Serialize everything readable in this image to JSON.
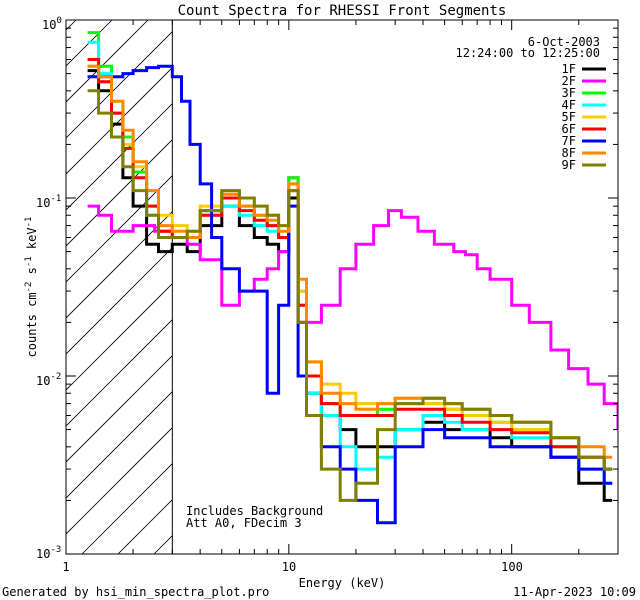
{
  "chart_data": {
    "type": "line",
    "title": "Count Spectra for RHESSI Front Segments",
    "xlabel": "Energy (keV)",
    "ylabel_parts": {
      "main": "counts cm",
      "exp1": "-2",
      "mid1": " s",
      "exp2": "-1",
      "mid2": " keV",
      "exp3": "-1"
    },
    "x_scale": "log",
    "y_scale": "log",
    "xlim": [
      1,
      300
    ],
    "ylim": [
      0.001,
      1
    ],
    "x_ticks": [
      {
        "value": 1,
        "label": "1"
      },
      {
        "value": 10,
        "label": "10"
      },
      {
        "value": 100,
        "label": "100"
      }
    ],
    "y_ticks": [
      {
        "value": 1,
        "base": "10",
        "exp": "0"
      },
      {
        "value": 0.1,
        "base": "10",
        "exp": "-1"
      },
      {
        "value": 0.01,
        "base": "10",
        "exp": "-2"
      },
      {
        "value": 0.001,
        "base": "10",
        "exp": "-3"
      }
    ],
    "date": "6-Oct-2003",
    "time_range": "12:24:00 to 12:25:00",
    "annotations": [
      "Includes Background",
      "Att A0, FDecim 3"
    ],
    "hatched_region_xmax": 3,
    "legend_position": "top-right",
    "series": [
      {
        "name": "1F",
        "color": "#000000",
        "points": [
          [
            1.25,
            0.52
          ],
          [
            1.4,
            0.4
          ],
          [
            1.6,
            0.26
          ],
          [
            1.8,
            0.13
          ],
          [
            2.0,
            0.09
          ],
          [
            2.3,
            0.055
          ],
          [
            2.6,
            0.05
          ],
          [
            3.0,
            0.055
          ],
          [
            3.5,
            0.05
          ],
          [
            4.0,
            0.07
          ],
          [
            5.0,
            0.09
          ],
          [
            6.0,
            0.07
          ],
          [
            7.0,
            0.06
          ],
          [
            8.0,
            0.055
          ],
          [
            9.0,
            0.05
          ],
          [
            10.0,
            0.1
          ],
          [
            11.0,
            0.02
          ],
          [
            12.0,
            0.008
          ],
          [
            14.0,
            0.006
          ],
          [
            17.0,
            0.005
          ],
          [
            20.0,
            0.004
          ],
          [
            25.0,
            0.004
          ],
          [
            30.0,
            0.005
          ],
          [
            40.0,
            0.0055
          ],
          [
            50.0,
            0.005
          ],
          [
            60.0,
            0.005
          ],
          [
            80.0,
            0.0045
          ],
          [
            100.0,
            0.004
          ],
          [
            150.0,
            0.0035
          ],
          [
            200.0,
            0.0025
          ],
          [
            260.0,
            0.002
          ]
        ]
      },
      {
        "name": "2F",
        "color": "#ff00ff",
        "points": [
          [
            1.25,
            0.09
          ],
          [
            1.4,
            0.08
          ],
          [
            1.6,
            0.065
          ],
          [
            1.8,
            0.065
          ],
          [
            2.0,
            0.07
          ],
          [
            2.5,
            0.065
          ],
          [
            3.0,
            0.06
          ],
          [
            3.5,
            0.055
          ],
          [
            4.0,
            0.045
          ],
          [
            5.0,
            0.025
          ],
          [
            6.0,
            0.03
          ],
          [
            7.0,
            0.035
          ],
          [
            8.0,
            0.04
          ],
          [
            9.0,
            0.05
          ],
          [
            10.0,
            0.13
          ],
          [
            11.0,
            0.03
          ],
          [
            12.0,
            0.02
          ],
          [
            14.0,
            0.025
          ],
          [
            17.0,
            0.04
          ],
          [
            20.0,
            0.055
          ],
          [
            24.0,
            0.07
          ],
          [
            28.0,
            0.085
          ],
          [
            32.0,
            0.078
          ],
          [
            38.0,
            0.065
          ],
          [
            45.0,
            0.055
          ],
          [
            55.0,
            0.05
          ],
          [
            62.0,
            0.048
          ],
          [
            70.0,
            0.04
          ],
          [
            80.0,
            0.035
          ],
          [
            100.0,
            0.025
          ],
          [
            120.0,
            0.02
          ],
          [
            150.0,
            0.014
          ],
          [
            180.0,
            0.011
          ],
          [
            220.0,
            0.009
          ],
          [
            260.0,
            0.007
          ],
          [
            300.0,
            0.005
          ]
        ]
      },
      {
        "name": "3F",
        "color": "#00ff00",
        "points": [
          [
            1.25,
            0.85
          ],
          [
            1.4,
            0.55
          ],
          [
            1.6,
            0.35
          ],
          [
            1.8,
            0.22
          ],
          [
            2.0,
            0.14
          ],
          [
            2.3,
            0.09
          ],
          [
            2.6,
            0.06
          ],
          [
            3.0,
            0.06
          ],
          [
            3.5,
            0.06
          ],
          [
            4.0,
            0.085
          ],
          [
            5.0,
            0.1
          ],
          [
            6.0,
            0.09
          ],
          [
            7.0,
            0.08
          ],
          [
            8.0,
            0.07
          ],
          [
            9.0,
            0.06
          ],
          [
            10.0,
            0.13
          ],
          [
            11.0,
            0.03
          ],
          [
            12.0,
            0.01
          ],
          [
            14.0,
            0.007
          ],
          [
            17.0,
            0.006
          ],
          [
            20.0,
            0.006
          ],
          [
            25.0,
            0.0065
          ],
          [
            30.0,
            0.007
          ],
          [
            40.0,
            0.007
          ],
          [
            50.0,
            0.0065
          ],
          [
            60.0,
            0.006
          ],
          [
            80.0,
            0.0055
          ],
          [
            100.0,
            0.005
          ],
          [
            150.0,
            0.004
          ],
          [
            200.0,
            0.0035
          ],
          [
            260.0,
            0.003
          ]
        ]
      },
      {
        "name": "4F",
        "color": "#00ffff",
        "points": [
          [
            1.25,
            0.75
          ],
          [
            1.4,
            0.5
          ],
          [
            1.6,
            0.3
          ],
          [
            1.8,
            0.19
          ],
          [
            2.0,
            0.13
          ],
          [
            2.3,
            0.08
          ],
          [
            2.6,
            0.06
          ],
          [
            3.0,
            0.06
          ],
          [
            3.5,
            0.06
          ],
          [
            4.0,
            0.08
          ],
          [
            5.0,
            0.09
          ],
          [
            6.0,
            0.08
          ],
          [
            7.0,
            0.07
          ],
          [
            8.0,
            0.065
          ],
          [
            9.0,
            0.06
          ],
          [
            10.0,
            0.12
          ],
          [
            11.0,
            0.025
          ],
          [
            12.0,
            0.008
          ],
          [
            14.0,
            0.006
          ],
          [
            17.0,
            0.004
          ],
          [
            20.0,
            0.003
          ],
          [
            25.0,
            0.0035
          ],
          [
            30.0,
            0.005
          ],
          [
            40.0,
            0.006
          ],
          [
            50.0,
            0.0055
          ],
          [
            60.0,
            0.005
          ],
          [
            80.0,
            0.005
          ],
          [
            100.0,
            0.0045
          ],
          [
            150.0,
            0.004
          ],
          [
            200.0,
            0.003
          ],
          [
            260.0,
            0.0025
          ]
        ]
      },
      {
        "name": "5F",
        "color": "#ffcc00",
        "points": [
          [
            1.25,
            0.55
          ],
          [
            1.4,
            0.45
          ],
          [
            1.6,
            0.3
          ],
          [
            1.8,
            0.2
          ],
          [
            2.0,
            0.15
          ],
          [
            2.3,
            0.11
          ],
          [
            2.6,
            0.08
          ],
          [
            3.0,
            0.07
          ],
          [
            3.5,
            0.065
          ],
          [
            4.0,
            0.09
          ],
          [
            5.0,
            0.11
          ],
          [
            6.0,
            0.1
          ],
          [
            7.0,
            0.09
          ],
          [
            8.0,
            0.08
          ],
          [
            9.0,
            0.07
          ],
          [
            10.0,
            0.12
          ],
          [
            11.0,
            0.03
          ],
          [
            12.0,
            0.012
          ],
          [
            14.0,
            0.009
          ],
          [
            17.0,
            0.008
          ],
          [
            20.0,
            0.007
          ],
          [
            25.0,
            0.007
          ],
          [
            30.0,
            0.0075
          ],
          [
            40.0,
            0.007
          ],
          [
            50.0,
            0.0065
          ],
          [
            60.0,
            0.006
          ],
          [
            80.0,
            0.0055
          ],
          [
            100.0,
            0.005
          ],
          [
            150.0,
            0.0045
          ],
          [
            200.0,
            0.0035
          ],
          [
            260.0,
            0.003
          ]
        ]
      },
      {
        "name": "6F",
        "color": "#ff0000",
        "points": [
          [
            1.25,
            0.6
          ],
          [
            1.4,
            0.45
          ],
          [
            1.6,
            0.3
          ],
          [
            1.8,
            0.19
          ],
          [
            2.0,
            0.13
          ],
          [
            2.3,
            0.09
          ],
          [
            2.6,
            0.065
          ],
          [
            3.0,
            0.06
          ],
          [
            3.5,
            0.06
          ],
          [
            4.0,
            0.08
          ],
          [
            5.0,
            0.1
          ],
          [
            6.0,
            0.085
          ],
          [
            7.0,
            0.075
          ],
          [
            8.0,
            0.07
          ],
          [
            9.0,
            0.06
          ],
          [
            10.0,
            0.11
          ],
          [
            11.0,
            0.025
          ],
          [
            12.0,
            0.01
          ],
          [
            14.0,
            0.007
          ],
          [
            17.0,
            0.006
          ],
          [
            20.0,
            0.006
          ],
          [
            25.0,
            0.006
          ],
          [
            30.0,
            0.0065
          ],
          [
            40.0,
            0.0065
          ],
          [
            50.0,
            0.006
          ],
          [
            60.0,
            0.0055
          ],
          [
            80.0,
            0.005
          ],
          [
            100.0,
            0.0048
          ],
          [
            150.0,
            0.004
          ],
          [
            200.0,
            0.0035
          ],
          [
            260.0,
            0.003
          ]
        ]
      },
      {
        "name": "7F",
        "color": "#0000ff",
        "points": [
          [
            1.25,
            0.48
          ],
          [
            1.4,
            0.48
          ],
          [
            1.6,
            0.48
          ],
          [
            1.8,
            0.5
          ],
          [
            2.0,
            0.52
          ],
          [
            2.3,
            0.54
          ],
          [
            2.6,
            0.55
          ],
          [
            3.0,
            0.48
          ],
          [
            3.3,
            0.35
          ],
          [
            3.6,
            0.2
          ],
          [
            4.0,
            0.12
          ],
          [
            4.5,
            0.06
          ],
          [
            5.0,
            0.04
          ],
          [
            6.0,
            0.03
          ],
          [
            7.0,
            0.03
          ],
          [
            8.0,
            0.008
          ],
          [
            9.0,
            0.025
          ],
          [
            10.0,
            0.09
          ],
          [
            11.0,
            0.01
          ],
          [
            12.0,
            0.006
          ],
          [
            14.0,
            0.004
          ],
          [
            17.0,
            0.003
          ],
          [
            20.0,
            0.002
          ],
          [
            25.0,
            0.0015
          ],
          [
            30.0,
            0.004
          ],
          [
            40.0,
            0.005
          ],
          [
            50.0,
            0.0045
          ],
          [
            60.0,
            0.0045
          ],
          [
            80.0,
            0.004
          ],
          [
            100.0,
            0.004
          ],
          [
            150.0,
            0.0035
          ],
          [
            200.0,
            0.003
          ],
          [
            260.0,
            0.0025
          ]
        ]
      },
      {
        "name": "8F",
        "color": "#ff8800",
        "points": [
          [
            1.25,
            0.55
          ],
          [
            1.4,
            0.48
          ],
          [
            1.6,
            0.35
          ],
          [
            1.8,
            0.24
          ],
          [
            2.0,
            0.16
          ],
          [
            2.3,
            0.11
          ],
          [
            2.6,
            0.07
          ],
          [
            3.0,
            0.065
          ],
          [
            3.5,
            0.06
          ],
          [
            4.0,
            0.085
          ],
          [
            5.0,
            0.105
          ],
          [
            6.0,
            0.09
          ],
          [
            7.0,
            0.08
          ],
          [
            8.0,
            0.075
          ],
          [
            9.0,
            0.065
          ],
          [
            10.0,
            0.12
          ],
          [
            11.0,
            0.035
          ],
          [
            12.0,
            0.012
          ],
          [
            14.0,
            0.008
          ],
          [
            17.0,
            0.007
          ],
          [
            20.0,
            0.0065
          ],
          [
            25.0,
            0.007
          ],
          [
            30.0,
            0.0075
          ],
          [
            40.0,
            0.0075
          ],
          [
            50.0,
            0.007
          ],
          [
            60.0,
            0.0065
          ],
          [
            80.0,
            0.006
          ],
          [
            100.0,
            0.0055
          ],
          [
            150.0,
            0.0045
          ],
          [
            200.0,
            0.004
          ],
          [
            260.0,
            0.0035
          ]
        ]
      },
      {
        "name": "9F",
        "color": "#808000",
        "points": [
          [
            1.25,
            0.4
          ],
          [
            1.4,
            0.3
          ],
          [
            1.6,
            0.22
          ],
          [
            1.8,
            0.15
          ],
          [
            2.0,
            0.11
          ],
          [
            2.3,
            0.08
          ],
          [
            2.6,
            0.06
          ],
          [
            3.0,
            0.06
          ],
          [
            3.5,
            0.065
          ],
          [
            4.0,
            0.085
          ],
          [
            5.0,
            0.11
          ],
          [
            6.0,
            0.1
          ],
          [
            7.0,
            0.09
          ],
          [
            8.0,
            0.08
          ],
          [
            9.0,
            0.07
          ],
          [
            10.0,
            0.11
          ],
          [
            11.0,
            0.02
          ],
          [
            12.0,
            0.006
          ],
          [
            14.0,
            0.003
          ],
          [
            17.0,
            0.002
          ],
          [
            20.0,
            0.0025
          ],
          [
            25.0,
            0.005
          ],
          [
            30.0,
            0.007
          ],
          [
            40.0,
            0.0075
          ],
          [
            50.0,
            0.007
          ],
          [
            60.0,
            0.0065
          ],
          [
            80.0,
            0.006
          ],
          [
            100.0,
            0.0055
          ],
          [
            150.0,
            0.0045
          ],
          [
            200.0,
            0.0035
          ],
          [
            260.0,
            0.003
          ]
        ]
      }
    ]
  },
  "footer": {
    "generated_by": "Generated by hsi_min_spectra_plot.pro",
    "timestamp": "11-Apr-2023 10:09"
  }
}
